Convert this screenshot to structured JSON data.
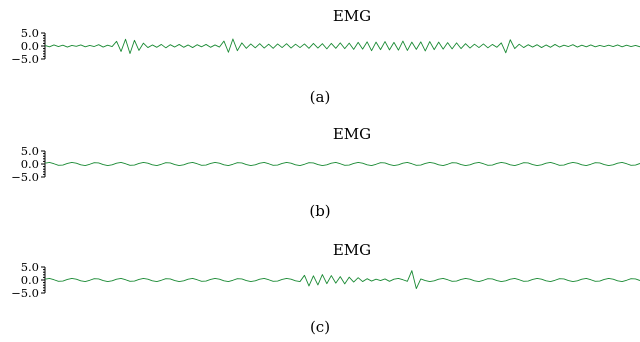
{
  "chart_data": [
    {
      "type": "line",
      "title": "EMG",
      "sublabel": "(a)",
      "ylim": [
        -5.0,
        5.0
      ],
      "yticks": [
        5.0,
        0.0,
        -5.0
      ],
      "ytick_labels": [
        "5.0",
        "0.0",
        "−5.0"
      ],
      "line_color": "#1a8a34",
      "series": [
        {
          "values": [
            0.2,
            -0.3,
            0.4,
            -0.2,
            0.3,
            -0.4,
            0.2,
            -0.1,
            0.4,
            -0.3,
            0.2,
            -0.2,
            0.5,
            -0.4,
            0.3,
            -0.2,
            1.8,
            -2.1,
            2.6,
            -2.9,
            2.2,
            -1.7,
            1.1,
            -0.6,
            0.4,
            -0.5,
            0.6,
            -0.7,
            0.5,
            -0.4,
            0.6,
            -0.5,
            0.4,
            -0.6,
            0.5,
            -0.3,
            0.6,
            -0.5,
            0.4,
            -0.4,
            1.9,
            -2.4,
            2.7,
            -1.8,
            1.2,
            -0.9,
            0.8,
            -0.7,
            0.9,
            -0.8,
            0.7,
            -0.9,
            0.8,
            -0.6,
            0.9,
            -0.8,
            0.7,
            -0.6,
            0.8,
            -0.9,
            1.0,
            -0.8,
            0.9,
            -1.1,
            1.0,
            -0.9,
            1.2,
            -1.0,
            1.1,
            -1.3,
            1.4,
            -1.2,
            1.6,
            -1.8,
            1.5,
            -1.4,
            1.7,
            -1.5,
            1.4,
            -1.6,
            1.9,
            -1.7,
            1.5,
            -1.3,
            1.6,
            -1.9,
            1.7,
            -1.4,
            1.5,
            -1.2,
            1.3,
            -1.1,
            1.2,
            -1.0,
            0.9,
            -0.8,
            0.7,
            -0.6,
            0.8,
            -0.7,
            0.6,
            -0.5,
            1.2,
            -2.6,
            2.4,
            -1.0,
            0.7,
            -0.6,
            0.5,
            -0.4,
            0.5,
            -0.6,
            0.4,
            -0.5,
            0.6,
            -0.4,
            0.3,
            -0.2,
            0.5,
            -0.4,
            0.3,
            -0.3,
            0.4,
            -0.3,
            0.2,
            -0.2,
            0.3,
            -0.2,
            0.4,
            -0.3,
            0.3,
            -0.2,
            0.2,
            -0.3
          ]
        }
      ]
    },
    {
      "type": "line",
      "title": "EMG",
      "sublabel": "(b)",
      "ylim": [
        -5.0,
        5.0
      ],
      "yticks": [
        5.0,
        0.0,
        -5.0
      ],
      "ytick_labels": [
        "5.0",
        "0.0",
        "−5.0"
      ],
      "line_color": "#1a8a34",
      "series": [
        {
          "values": [
            0.3,
            0.6,
            0.1,
            -0.5,
            -0.4,
            0.2,
            0.6,
            0.3,
            -0.3,
            -0.6,
            -0.1,
            0.5,
            0.4,
            -0.2,
            -0.6,
            -0.3,
            0.3,
            0.6,
            0.1,
            -0.5,
            -0.4,
            0.2,
            0.6,
            0.3,
            -0.3,
            -0.6,
            -0.1,
            0.5,
            0.4,
            -0.2,
            -0.6,
            -0.3,
            0.3,
            0.6,
            0.1,
            -0.5,
            -0.4,
            0.2,
            0.6,
            0.3,
            -0.3,
            -0.6,
            -0.1,
            0.5,
            0.4,
            -0.2,
            -0.6,
            -0.3,
            0.3,
            0.6,
            0.1,
            -0.5,
            -0.4,
            0.2,
            0.6,
            0.3,
            -0.3,
            -0.6,
            -0.1,
            0.5,
            0.4,
            -0.2,
            -0.6,
            -0.3,
            0.3,
            0.6,
            0.1,
            -0.5,
            -0.4,
            0.2,
            0.6,
            0.3,
            -0.3,
            -0.6,
            -0.1,
            0.5,
            0.4,
            -0.2,
            -0.6,
            -0.3,
            0.3,
            0.6,
            0.1,
            -0.5,
            -0.4,
            0.2,
            0.6,
            0.3,
            -0.3,
            -0.6,
            -0.1,
            0.5,
            0.4,
            -0.2,
            -0.6,
            -0.3,
            0.3,
            0.6,
            0.1,
            -0.5,
            -0.4,
            0.2,
            0.6,
            0.3,
            -0.3,
            -0.6,
            -0.1,
            0.5,
            0.4,
            -0.2,
            -0.6,
            -0.3,
            0.3,
            0.6,
            0.1,
            -0.5,
            -0.4,
            0.2,
            0.6,
            0.3,
            -0.3,
            -0.6,
            -0.1,
            0.5,
            0.4,
            -0.2,
            -0.6,
            -0.3,
            0.3,
            0.6,
            0.1,
            -0.5,
            -0.4,
            0.2
          ]
        }
      ]
    },
    {
      "type": "line",
      "title": "EMG",
      "sublabel": "(c)",
      "ylim": [
        -5.0,
        5.0
      ],
      "yticks": [
        5.0,
        0.0,
        -5.0
      ],
      "ytick_labels": [
        "5.0",
        "0.0",
        "−5.0"
      ],
      "line_color": "#1a8a34",
      "series": [
        {
          "values": [
            0.3,
            0.6,
            0.1,
            -0.5,
            -0.4,
            0.2,
            0.6,
            0.3,
            -0.3,
            -0.6,
            -0.1,
            0.5,
            0.4,
            -0.2,
            -0.6,
            -0.3,
            0.3,
            0.6,
            0.1,
            -0.5,
            -0.4,
            0.2,
            0.6,
            0.3,
            -0.3,
            -0.6,
            -0.1,
            0.5,
            0.4,
            -0.2,
            -0.6,
            -0.3,
            0.3,
            0.6,
            0.1,
            -0.5,
            -0.4,
            0.2,
            0.6,
            0.3,
            -0.3,
            -0.6,
            -0.1,
            0.5,
            0.4,
            -0.2,
            -0.6,
            -0.3,
            0.3,
            0.6,
            0.1,
            -0.5,
            -0.4,
            0.2,
            0.6,
            0.3,
            -0.3,
            -0.6,
            1.8,
            -2.3,
            1.6,
            -1.9,
            2.1,
            -1.4,
            1.7,
            -1.2,
            1.3,
            -1.5,
            1.1,
            -0.8,
            0.9,
            -0.6,
            0.5,
            -0.4,
            0.3,
            -0.2,
            0.4,
            -0.5,
            0.3,
            0.6,
            0.1,
            -0.5,
            3.6,
            -3.3,
            0.4,
            -0.2,
            -0.6,
            -0.3,
            0.3,
            0.6,
            0.1,
            -0.5,
            -0.4,
            0.2,
            0.6,
            0.3,
            -0.3,
            -0.6,
            -0.1,
            0.5,
            0.4,
            -0.2,
            -0.6,
            -0.3,
            0.3,
            0.6,
            0.1,
            -0.5,
            -0.4,
            0.2,
            0.6,
            0.3,
            -0.3,
            -0.6,
            -0.1,
            0.5,
            0.4,
            -0.2,
            -0.6,
            -0.3,
            0.3,
            0.6,
            0.1,
            -0.5,
            -0.4,
            0.2,
            0.6,
            0.3,
            -0.3,
            -0.6,
            -0.1,
            0.5,
            0.4,
            -0.2
          ]
        }
      ]
    }
  ]
}
